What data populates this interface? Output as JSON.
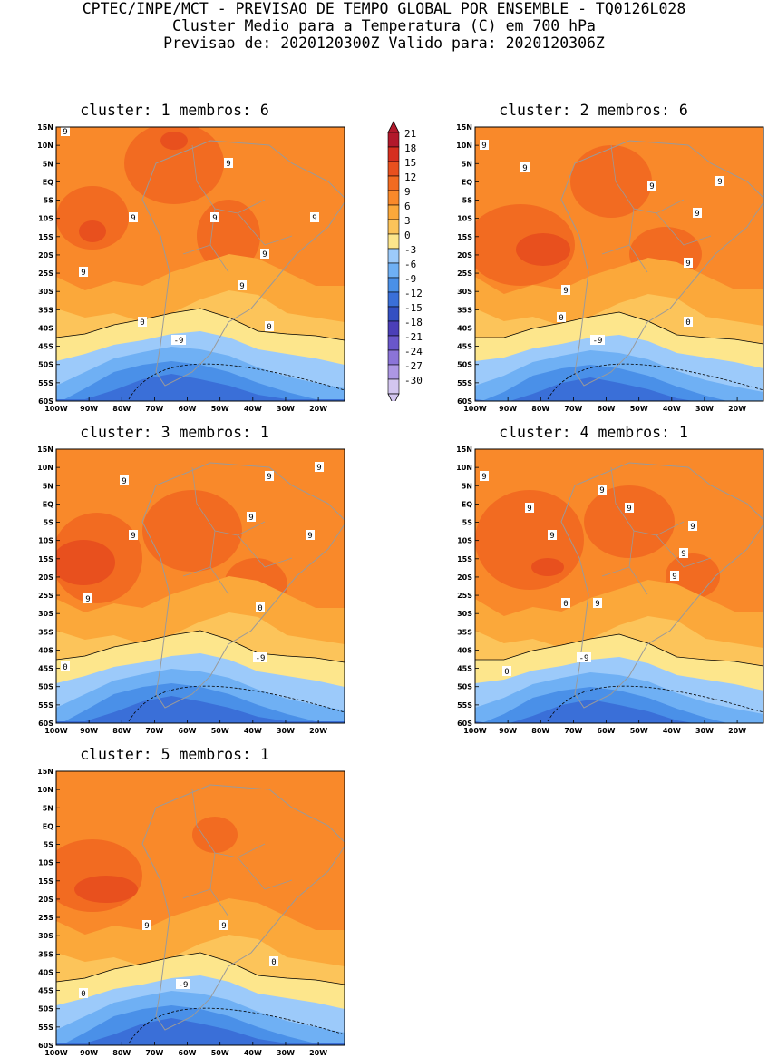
{
  "header": {
    "line1": "CPTEC/INPE/MCT - PREVISAO DE TEMPO GLOBAL POR ENSEMBLE - TQ0126L028",
    "line2": "Cluster Medio para a Temperatura (C) em 700 hPa",
    "line3": "Previsao de: 2020120300Z    Valido para: 2020120306Z"
  },
  "axes": {
    "lat_labels": [
      "15N",
      "10N",
      "5N",
      "EQ",
      "5S",
      "10S",
      "15S",
      "20S",
      "25S",
      "30S",
      "35S",
      "40S",
      "45S",
      "50S",
      "55S",
      "60S"
    ],
    "lon_labels": [
      "100W",
      "90W",
      "80W",
      "70W",
      "60W",
      "50W",
      "40W",
      "30W",
      "20W"
    ]
  },
  "colorbar": {
    "levels": [
      "21",
      "18",
      "15",
      "12",
      "9",
      "6",
      "3",
      "0",
      "-3",
      "-6",
      "-9",
      "-12",
      "-15",
      "-18",
      "-21",
      "-24",
      "-27",
      "-30"
    ],
    "colors": [
      "#b2182b",
      "#d62f1f",
      "#e8501e",
      "#f26b21",
      "#f9892a",
      "#fba83a",
      "#fcc45a",
      "#fde68c",
      "#9ccafa",
      "#6fb0f4",
      "#4a90e8",
      "#3a6fd8",
      "#3450c2",
      "#4b3fb8",
      "#6a57cb",
      "#8b74d8",
      "#ad97e4",
      "#d3c6f0"
    ]
  },
  "clusters": [
    {
      "title": "cluster: 1   membros: 6",
      "contour_labels": [
        "9",
        "9",
        "9",
        "9",
        "9",
        "9",
        "9",
        "9",
        "0",
        "0",
        "-9"
      ]
    },
    {
      "title": "cluster: 2   membros: 6",
      "contour_labels": [
        "9",
        "9",
        "9",
        "9",
        "9",
        "9",
        "9",
        "0",
        "0",
        "-9"
      ]
    },
    {
      "title": "cluster: 3   membros: 1",
      "contour_labels": [
        "9",
        "9",
        "9",
        "9",
        "9",
        "9",
        "9",
        "0",
        "0",
        "-9"
      ]
    },
    {
      "title": "cluster: 4   membros: 1",
      "contour_labels": [
        "9",
        "9",
        "9",
        "9",
        "9",
        "9",
        "9",
        "9",
        "9",
        "0",
        "0",
        "-9"
      ]
    },
    {
      "title": "cluster: 5   membros: 1",
      "contour_labels": [
        "9",
        "9",
        "0",
        "0",
        "-9"
      ]
    }
  ]
}
